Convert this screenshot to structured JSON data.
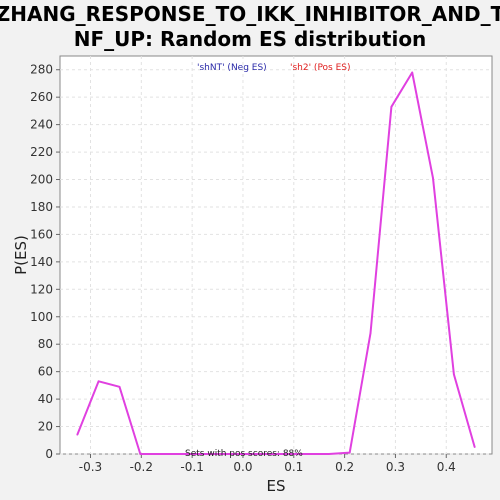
{
  "chart_data": {
    "type": "line",
    "title_lines": [
      "ZHANG_RESPONSE_TO_IKK_INHIBITOR_AND_T",
      "NF_UP: Random ES distribution"
    ],
    "xlabel": "ES",
    "ylabel": "P(ES)",
    "xlim": [
      -0.36,
      0.49
    ],
    "ylim": [
      0,
      290
    ],
    "x_ticks": [
      -0.3,
      -0.2,
      -0.1,
      0.0,
      0.1,
      0.2,
      0.3,
      0.4
    ],
    "x_tick_labels": [
      "-0.3",
      "-0.2",
      "-0.1",
      "0.0",
      "0.1",
      "0.2",
      "0.3",
      "0.4"
    ],
    "y_ticks": [
      0,
      20,
      40,
      60,
      80,
      100,
      120,
      140,
      160,
      180,
      200,
      220,
      240,
      260,
      280
    ],
    "y_tick_labels": [
      "0",
      "20",
      "40",
      "60",
      "80",
      "100",
      "120",
      "140",
      "160",
      "180",
      "200",
      "220",
      "240",
      "260",
      "280"
    ],
    "grid": true,
    "legend": [
      {
        "label": "'shNT' (Neg ES)",
        "color": "#2a2aa8"
      },
      {
        "label": "'sh2' (Pos ES)",
        "color": "#e02020"
      }
    ],
    "legend_placement": "top-center",
    "series": [
      {
        "color": "#e040e0",
        "x": [
          -0.326,
          -0.284,
          -0.243,
          -0.202,
          -0.16,
          -0.119,
          -0.078,
          -0.037,
          0.004,
          0.045,
          0.087,
          0.128,
          0.169,
          0.21,
          0.251,
          0.292,
          0.333,
          0.374,
          0.415,
          0.456
        ],
        "y": [
          14,
          53,
          49,
          0,
          0,
          0,
          0,
          0,
          0,
          0,
          0,
          0,
          0,
          1,
          88,
          253,
          278,
          201,
          58,
          5
        ]
      }
    ],
    "annotation": "Sets with pos scores: 88%"
  }
}
